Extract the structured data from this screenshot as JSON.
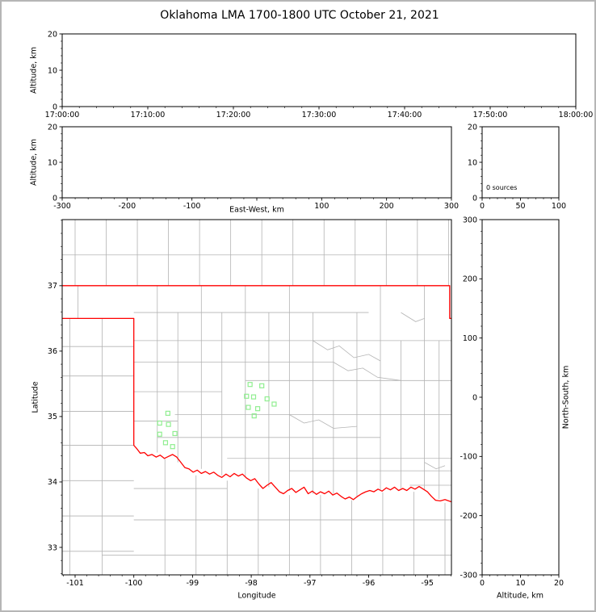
{
  "title": "Oklahoma LMA 1700-1800 UTC October 21, 2021",
  "chart_data": {
    "type": "scatter",
    "title": "Oklahoma LMA 1700-1800 UTC October 21, 2021",
    "description": "Lightning Mapping Array multi-panel display: altitude-time, altitude-east/west, source histogram, plan-view station map, north/south-altitude. No lightning sources plotted this hour.",
    "source_count": 0,
    "panels": {
      "time_height": {
        "ylabel": "Altitude, km",
        "xlim": [
          0,
          3600
        ],
        "ylim": [
          0,
          20
        ],
        "x_tick_values": [
          0,
          600,
          1200,
          1800,
          2400,
          3000,
          3600
        ],
        "x_tick_labels": [
          "17:00:00",
          "17:10:00",
          "17:20:00",
          "17:30:00",
          "17:40:00",
          "17:50:00",
          "18:00:00"
        ],
        "x_minor_step": 120,
        "y_tick_values": [
          0,
          10,
          20
        ],
        "y_tick_labels": [
          "0",
          "10",
          "20"
        ],
        "y_minor_step": 2,
        "points": []
      },
      "ew_height": {
        "xlabel": "East-West, km",
        "ylabel": "Altitude, km",
        "xlim": [
          -300,
          300
        ],
        "ylim": [
          0,
          20
        ],
        "x_tick_values": [
          -300,
          -200,
          -100,
          0,
          100,
          200,
          300
        ],
        "x_tick_labels": [
          "-300",
          "-200",
          "-100",
          "",
          "100",
          "200",
          "300"
        ],
        "x_minor_step": 20,
        "y_tick_values": [
          0,
          10,
          20
        ],
        "y_tick_labels": [
          "0",
          "10",
          "20"
        ],
        "y_minor_step": 2,
        "points": []
      },
      "histogram": {
        "annotation": "0 sources",
        "xlim": [
          0,
          100
        ],
        "ylim": [
          0,
          20
        ],
        "x_tick_values": [
          0,
          50,
          100
        ],
        "x_tick_labels": [
          "0",
          "50",
          "100"
        ],
        "x_minor_step": 10,
        "y_tick_values": [
          0,
          10,
          20
        ],
        "y_tick_labels": [
          "0",
          "10",
          "20"
        ],
        "y_minor_step": 2,
        "counts": []
      },
      "map": {
        "xlabel": "Longitude",
        "ylabel": "Latitude",
        "xlim": [
          -101.22,
          -94.59
        ],
        "ylim": [
          32.58,
          38.01
        ],
        "x_tick_values": [
          -101,
          -100,
          -99,
          -98,
          -97,
          -96,
          -95
        ],
        "x_tick_labels": [
          "-101",
          "-100",
          "-99",
          "-98",
          "-97",
          "-96",
          "-95"
        ],
        "x_minor_step": 0.2,
        "y_tick_values": [
          33,
          34,
          35,
          36,
          37
        ],
        "y_tick_labels": [
          "33",
          "34",
          "35",
          "36",
          "37"
        ],
        "y_minor_step": 0.2
      },
      "ns_height": {
        "xlabel": "Altitude, km",
        "ylabel": "North-South, km",
        "xlim": [
          0,
          20
        ],
        "ylim": [
          -300,
          300
        ],
        "x_tick_values": [
          0,
          10,
          20
        ],
        "x_tick_labels": [
          "0",
          "10",
          "20"
        ],
        "x_minor_step": 2,
        "y_tick_values": [
          -300,
          -200,
          -100,
          0,
          100,
          200,
          300
        ],
        "y_tick_labels": [
          "-300",
          "-200",
          "-100",
          "0",
          "100",
          "200",
          "300"
        ],
        "y_minor_step": 20,
        "points": []
      }
    },
    "stations": [
      [
        -98.02,
        35.49
      ],
      [
        -97.82,
        35.47
      ],
      [
        -98.08,
        35.31
      ],
      [
        -97.96,
        35.3
      ],
      [
        -97.73,
        35.27
      ],
      [
        -98.05,
        35.14
      ],
      [
        -97.89,
        35.12
      ],
      [
        -97.61,
        35.19
      ],
      [
        -97.95,
        35.01
      ],
      [
        -99.42,
        35.05
      ],
      [
        -99.56,
        34.9
      ],
      [
        -99.41,
        34.88
      ],
      [
        -99.3,
        34.74
      ],
      [
        -99.56,
        34.73
      ],
      [
        -99.46,
        34.6
      ],
      [
        -99.34,
        34.54
      ]
    ],
    "state_border": [
      [
        [
          -101.3,
          37.0
        ],
        [
          -94.62,
          37.0
        ],
        [
          -94.62,
          36.5
        ],
        [
          -94.5,
          36.5
        ]
      ],
      [
        [
          -101.3,
          36.5
        ],
        [
          -100.0,
          36.5
        ],
        [
          -100.0,
          34.56
        ],
        [
          -99.95,
          34.51
        ],
        [
          -99.89,
          34.44
        ],
        [
          -99.82,
          34.45
        ],
        [
          -99.76,
          34.4
        ],
        [
          -99.69,
          34.42
        ],
        [
          -99.62,
          34.38
        ],
        [
          -99.55,
          34.41
        ],
        [
          -99.48,
          34.36
        ],
        [
          -99.41,
          34.39
        ],
        [
          -99.34,
          34.42
        ],
        [
          -99.27,
          34.38
        ],
        [
          -99.2,
          34.3
        ],
        [
          -99.13,
          34.22
        ],
        [
          -99.06,
          34.2
        ],
        [
          -98.99,
          34.15
        ],
        [
          -98.92,
          34.18
        ],
        [
          -98.85,
          34.13
        ],
        [
          -98.78,
          34.16
        ],
        [
          -98.71,
          34.12
        ],
        [
          -98.64,
          34.15
        ],
        [
          -98.57,
          34.1
        ],
        [
          -98.5,
          34.07
        ],
        [
          -98.43,
          34.12
        ],
        [
          -98.36,
          34.08
        ],
        [
          -98.29,
          34.13
        ],
        [
          -98.22,
          34.09
        ],
        [
          -98.15,
          34.12
        ],
        [
          -98.08,
          34.06
        ],
        [
          -98.01,
          34.02
        ],
        [
          -97.94,
          34.05
        ],
        [
          -97.87,
          33.97
        ],
        [
          -97.8,
          33.9
        ],
        [
          -97.73,
          33.95
        ],
        [
          -97.66,
          33.99
        ],
        [
          -97.59,
          33.92
        ],
        [
          -97.52,
          33.85
        ],
        [
          -97.45,
          33.82
        ],
        [
          -97.38,
          33.87
        ],
        [
          -97.31,
          33.9
        ],
        [
          -97.24,
          33.84
        ],
        [
          -97.17,
          33.88
        ],
        [
          -97.1,
          33.92
        ],
        [
          -97.03,
          33.82
        ],
        [
          -96.96,
          33.86
        ],
        [
          -96.89,
          33.81
        ],
        [
          -96.82,
          33.85
        ],
        [
          -96.75,
          33.82
        ],
        [
          -96.68,
          33.86
        ],
        [
          -96.61,
          33.8
        ],
        [
          -96.54,
          33.83
        ],
        [
          -96.47,
          33.78
        ],
        [
          -96.4,
          33.74
        ],
        [
          -96.33,
          33.77
        ],
        [
          -96.26,
          33.73
        ],
        [
          -96.19,
          33.78
        ],
        [
          -96.12,
          33.82
        ],
        [
          -96.05,
          33.85
        ],
        [
          -95.98,
          33.87
        ],
        [
          -95.91,
          33.85
        ],
        [
          -95.84,
          33.89
        ],
        [
          -95.77,
          33.86
        ],
        [
          -95.7,
          33.91
        ],
        [
          -95.63,
          33.88
        ],
        [
          -95.56,
          33.92
        ],
        [
          -95.49,
          33.87
        ],
        [
          -95.42,
          33.9
        ],
        [
          -95.35,
          33.87
        ],
        [
          -95.28,
          33.92
        ],
        [
          -95.21,
          33.89
        ],
        [
          -95.14,
          33.93
        ],
        [
          -95.07,
          33.89
        ],
        [
          -95.0,
          33.85
        ],
        [
          -94.93,
          33.78
        ],
        [
          -94.86,
          33.72
        ],
        [
          -94.78,
          33.71
        ],
        [
          -94.7,
          33.73
        ],
        [
          -94.5,
          33.67
        ]
      ]
    ],
    "county_lines": {
      "verticals": [
        [
          -101.0,
          37.0,
          38.01
        ],
        [
          -100.47,
          37.0,
          38.01
        ],
        [
          -99.94,
          37.0,
          38.01
        ],
        [
          -99.41,
          37.0,
          38.01
        ],
        [
          -98.88,
          37.0,
          38.01
        ],
        [
          -98.35,
          37.0,
          38.01
        ],
        [
          -97.82,
          37.0,
          38.01
        ],
        [
          -97.29,
          37.0,
          38.01
        ],
        [
          -96.76,
          37.0,
          38.01
        ],
        [
          -96.23,
          37.0,
          38.01
        ],
        [
          -95.7,
          37.0,
          38.01
        ],
        [
          -95.17,
          37.0,
          38.01
        ],
        [
          -94.64,
          37.0,
          38.01
        ],
        [
          -100.95,
          36.5,
          37.0
        ],
        [
          -99.6,
          34.45,
          37.0
        ],
        [
          -99.25,
          34.3,
          36.59
        ],
        [
          -98.85,
          34.2,
          37.0
        ],
        [
          -98.5,
          34.1,
          36.59
        ],
        [
          -98.1,
          34.08,
          37.0
        ],
        [
          -97.7,
          33.92,
          36.59
        ],
        [
          -97.35,
          33.86,
          37.0
        ],
        [
          -96.95,
          33.82,
          36.59
        ],
        [
          -96.6,
          33.82,
          36.16
        ],
        [
          -96.2,
          33.76,
          36.59
        ],
        [
          -95.8,
          33.88,
          37.0
        ],
        [
          -95.45,
          33.9,
          36.16
        ],
        [
          -95.05,
          33.88,
          37.0
        ],
        [
          -94.8,
          33.74,
          36.16
        ],
        [
          -101.09,
          32.58,
          36.5
        ],
        [
          -100.54,
          32.58,
          36.5
        ],
        [
          -99.47,
          32.58,
          34.35
        ],
        [
          -98.94,
          32.58,
          34.1
        ],
        [
          -98.41,
          32.58,
          34.02
        ],
        [
          -97.88,
          32.58,
          33.9
        ],
        [
          -97.35,
          32.58,
          33.8
        ],
        [
          -96.82,
          32.58,
          33.8
        ],
        [
          -96.29,
          32.58,
          33.72
        ],
        [
          -95.76,
          32.58,
          33.84
        ],
        [
          -95.23,
          32.58,
          33.85
        ],
        [
          -94.7,
          32.58,
          33.68
        ]
      ],
      "horizontals": [
        [
          37.47,
          -101.22,
          -94.59
        ],
        [
          36.59,
          -100.0,
          -96.0
        ],
        [
          36.16,
          -100.0,
          -94.59
        ],
        [
          35.83,
          -100.0,
          -96.6
        ],
        [
          35.55,
          -98.1,
          -94.59
        ],
        [
          35.38,
          -100.0,
          -98.5
        ],
        [
          35.03,
          -99.3,
          -94.59
        ],
        [
          34.93,
          -100.0,
          -99.25
        ],
        [
          34.68,
          -99.6,
          -95.8
        ],
        [
          34.36,
          -98.41,
          -94.59
        ],
        [
          34.17,
          -97.35,
          -94.59
        ],
        [
          33.95,
          -95.3,
          -94.59
        ],
        [
          36.07,
          -101.22,
          -100.0
        ],
        [
          35.62,
          -101.22,
          -100.0
        ],
        [
          35.08,
          -101.22,
          -100.0
        ],
        [
          34.56,
          -101.22,
          -100.0
        ],
        [
          34.02,
          -101.22,
          -100.0
        ],
        [
          33.48,
          -101.22,
          -100.0
        ],
        [
          32.94,
          -101.22,
          -100.0
        ],
        [
          33.9,
          -100.0,
          -98.41
        ],
        [
          33.42,
          -100.0,
          -94.59
        ],
        [
          32.88,
          -100.54,
          -94.59
        ]
      ],
      "polylines": [
        [
          [
            -96.95,
            36.16
          ],
          [
            -96.7,
            36.02
          ],
          [
            -96.5,
            36.08
          ],
          [
            -96.25,
            35.9
          ],
          [
            -96.0,
            35.95
          ],
          [
            -95.8,
            35.85
          ]
        ],
        [
          [
            -96.6,
            35.83
          ],
          [
            -96.35,
            35.7
          ],
          [
            -96.1,
            35.74
          ],
          [
            -95.85,
            35.6
          ],
          [
            -95.45,
            35.55
          ]
        ],
        [
          [
            -95.45,
            36.59
          ],
          [
            -95.2,
            36.45
          ],
          [
            -95.05,
            36.5
          ]
        ],
        [
          [
            -97.35,
            35.03
          ],
          [
            -97.1,
            34.9
          ],
          [
            -96.85,
            34.95
          ],
          [
            -96.6,
            34.82
          ],
          [
            -96.2,
            34.85
          ]
        ],
        [
          [
            -95.05,
            34.3
          ],
          [
            -94.85,
            34.2
          ],
          [
            -94.7,
            34.25
          ]
        ]
      ]
    },
    "colors": {
      "state_border": "#ff0000",
      "county": "#b3b3b3",
      "station": "#90ee90",
      "axes": "#000000",
      "background": "#ffffff",
      "frame": "#b6b6b6"
    }
  }
}
